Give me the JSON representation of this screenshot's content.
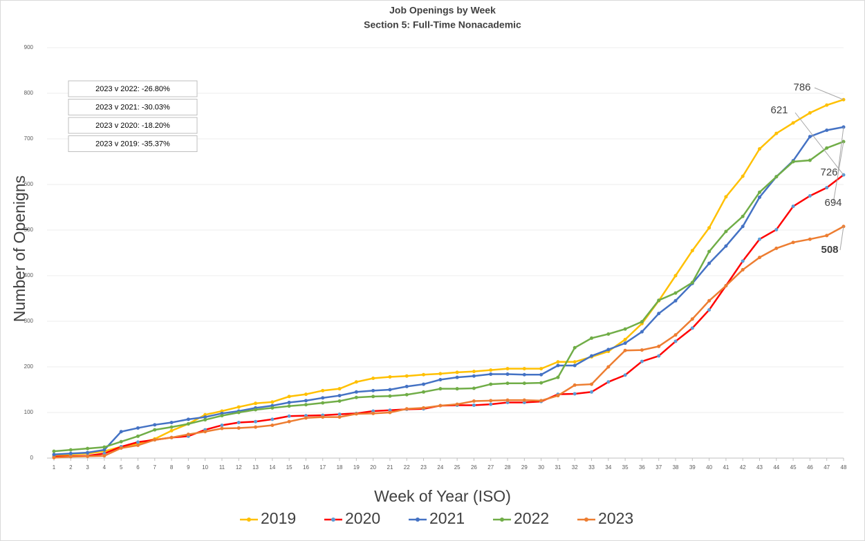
{
  "chart_data": {
    "type": "line",
    "title": "Job Openings by Week",
    "subtitle": "Section 5: Full-Time Nonacademic",
    "x_label": "Week of Year (ISO)",
    "y_label": "Number of Openigns",
    "annotations": [
      "2023 v 2022: -26.80%",
      "2023 v 2021: -30.03%",
      "2023 v 2020: -18.20%",
      "2023 v 2019: -35.37%"
    ],
    "x": [
      1,
      2,
      3,
      4,
      5,
      6,
      7,
      8,
      9,
      10,
      11,
      12,
      13,
      14,
      15,
      16,
      17,
      18,
      19,
      20,
      21,
      22,
      23,
      24,
      25,
      26,
      27,
      28,
      29,
      30,
      31,
      32,
      33,
      34,
      35,
      36,
      37,
      38,
      39,
      40,
      41,
      42,
      43,
      44,
      45,
      46,
      47,
      48
    ],
    "xlim": [
      1,
      48
    ],
    "ylim": [
      0,
      900
    ],
    "yticks": [
      0,
      100,
      200,
      300,
      400,
      500,
      600,
      700,
      800,
      900
    ],
    "grid": true,
    "legend": "bottom",
    "series": [
      {
        "name": "2019",
        "color": "#ffc000",
        "marker_color": "#ffc000",
        "values": [
          5,
          8,
          10,
          15,
          25,
          32,
          42,
          60,
          75,
          95,
          103,
          112,
          120,
          123,
          135,
          140,
          148,
          152,
          167,
          175,
          178,
          180,
          183,
          185,
          188,
          190,
          193,
          196,
          196,
          196,
          211,
          211,
          222,
          234,
          260,
          295,
          345,
          400,
          455,
          505,
          573,
          618,
          678,
          712,
          735,
          757,
          774,
          786
        ]
      },
      {
        "name": "2020",
        "color": "#ff0000",
        "marker_color": "#5b9bd5",
        "values": [
          3,
          4,
          5,
          10,
          25,
          35,
          40,
          45,
          48,
          62,
          72,
          78,
          80,
          85,
          92,
          93,
          94,
          96,
          98,
          103,
          105,
          107,
          108,
          115,
          116,
          116,
          118,
          122,
          122,
          124,
          140,
          141,
          145,
          167,
          182,
          212,
          224,
          256,
          285,
          325,
          378,
          432,
          480,
          501,
          552,
          575,
          593,
          621
        ]
      },
      {
        "name": "2021",
        "color": "#4472c4",
        "marker_color": "#4472c4",
        "values": [
          8,
          10,
          12,
          18,
          58,
          66,
          73,
          78,
          85,
          90,
          98,
          103,
          110,
          115,
          122,
          126,
          132,
          137,
          145,
          148,
          150,
          157,
          162,
          172,
          177,
          180,
          184,
          184,
          183,
          183,
          203,
          203,
          224,
          238,
          252,
          277,
          317,
          345,
          383,
          427,
          465,
          508,
          572,
          617,
          652,
          705,
          719,
          726
        ]
      },
      {
        "name": "2022",
        "color": "#70ad47",
        "marker_color": "#70ad47",
        "values": [
          15,
          18,
          21,
          24,
          36,
          48,
          62,
          68,
          75,
          84,
          93,
          100,
          106,
          110,
          114,
          117,
          121,
          125,
          133,
          135,
          136,
          139,
          145,
          152,
          152,
          153,
          162,
          164,
          164,
          165,
          177,
          242,
          263,
          272,
          283,
          299,
          346,
          362,
          385,
          453,
          497,
          530,
          583,
          617,
          650,
          653,
          680,
          694
        ]
      },
      {
        "name": "2023",
        "color": "#ed7d31",
        "marker_color": "#ed7d31",
        "values": [
          1,
          3,
          4,
          5,
          22,
          28,
          40,
          45,
          52,
          58,
          65,
          66,
          68,
          72,
          80,
          88,
          90,
          90,
          97,
          98,
          100,
          108,
          110,
          115,
          118,
          125,
          126,
          127,
          127,
          126,
          137,
          160,
          162,
          200,
          236,
          237,
          245,
          270,
          305,
          345,
          378,
          413,
          440,
          460,
          473,
          480,
          488,
          508
        ]
      }
    ]
  }
}
